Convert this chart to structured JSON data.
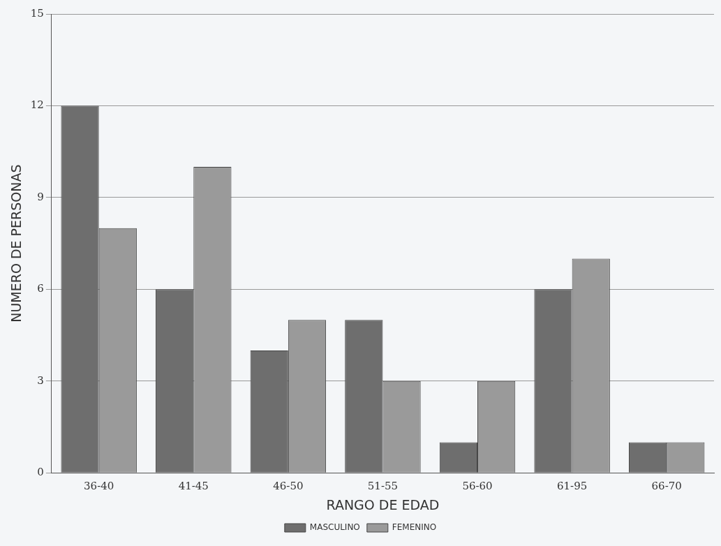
{
  "chart_data": {
    "type": "bar",
    "xlabel": "RANGO DE EDAD",
    "ylabel": "NUMERO DE PERSONAS",
    "categories": [
      "36-40",
      "41-45",
      "46-50",
      "51-55",
      "56-60",
      "61-95",
      "66-70"
    ],
    "series": [
      {
        "name": "MASCULINO",
        "color": "#6e6e6e",
        "values": [
          12,
          6,
          4,
          5,
          1,
          6,
          1
        ]
      },
      {
        "name": "FEMENINO",
        "color": "#9a9a9a",
        "values": [
          8,
          10,
          5,
          3,
          3,
          7,
          1
        ]
      }
    ],
    "ylim": [
      0,
      15
    ],
    "yticks": [
      0,
      3,
      6,
      9,
      12,
      15
    ],
    "grid": "y",
    "legend": "bottom"
  }
}
